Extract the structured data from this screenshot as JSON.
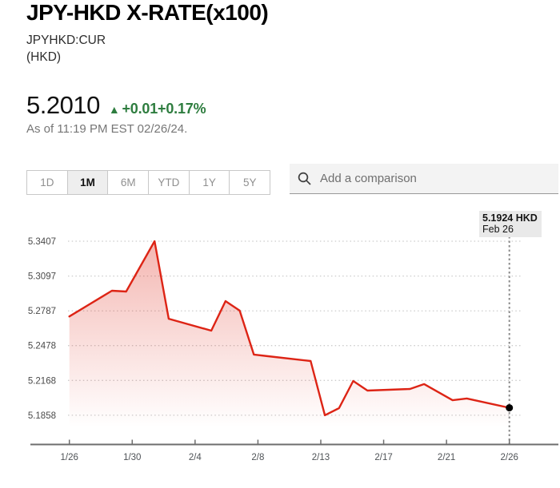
{
  "header": {
    "title": "JPY-HKD X-RATE(x100)",
    "symbol": "JPYHKD:CUR",
    "currency": "(HKD)"
  },
  "quote": {
    "price": "5.2010",
    "direction_icon": "▲",
    "change": "+0.01",
    "change_pct": "+0.17%",
    "as_of": "As of 11:19 PM EST 02/26/24."
  },
  "colors": {
    "up_green": "#2e7d3f",
    "line_red": "#dd2415",
    "grid_gray": "#cccccc",
    "axis_gray": "#6d6d6d",
    "marker_gray": "#8a8a8a"
  },
  "tabs": {
    "items": [
      {
        "label": "1D",
        "active": false
      },
      {
        "label": "1M",
        "active": true
      },
      {
        "label": "6M",
        "active": false
      },
      {
        "label": "YTD",
        "active": false
      },
      {
        "label": "1Y",
        "active": false
      },
      {
        "label": "5Y",
        "active": false
      }
    ]
  },
  "search": {
    "placeholder": "Add a comparison"
  },
  "chart_data": {
    "type": "area",
    "title": "JPY-HKD X-RATE(x100) 1M price chart",
    "series_name": "JPYHKD:CUR",
    "ylabel": "",
    "xlabel": "",
    "ylim": [
      5.1858,
      5.3407
    ],
    "grid": "dotted-horizontal",
    "y_ticks": [
      "5.3407",
      "5.3097",
      "5.2787",
      "5.2478",
      "5.2168",
      "5.1858"
    ],
    "x_ticks": [
      "1/26",
      "1/30",
      "2/4",
      "2/8",
      "2/13",
      "2/17",
      "2/21",
      "2/26"
    ],
    "points": [
      {
        "date": "1/26",
        "day": 0,
        "value": 5.2737
      },
      {
        "date": "1/29",
        "day": 3,
        "value": 5.2966
      },
      {
        "date": "1/30",
        "day": 4,
        "value": 5.2959
      },
      {
        "date": "2/1",
        "day": 6,
        "value": 5.3407
      },
      {
        "date": "2/2",
        "day": 7,
        "value": 5.2717
      },
      {
        "date": "2/5",
        "day": 10,
        "value": 5.2611
      },
      {
        "date": "2/6",
        "day": 11,
        "value": 5.2874
      },
      {
        "date": "2/7",
        "day": 12,
        "value": 5.2789
      },
      {
        "date": "2/8",
        "day": 13,
        "value": 5.2398
      },
      {
        "date": "2/9",
        "day": 14,
        "value": 5.2383
      },
      {
        "date": "2/12",
        "day": 17,
        "value": 5.2341
      },
      {
        "date": "2/13",
        "day": 18,
        "value": 5.1858
      },
      {
        "date": "2/14",
        "day": 19,
        "value": 5.1921
      },
      {
        "date": "2/15",
        "day": 20,
        "value": 5.2163
      },
      {
        "date": "2/16",
        "day": 21,
        "value": 5.2078
      },
      {
        "date": "2/19",
        "day": 24,
        "value": 5.2092
      },
      {
        "date": "2/20",
        "day": 25,
        "value": 5.2135
      },
      {
        "date": "2/22",
        "day": 27,
        "value": 5.1992
      },
      {
        "date": "2/23",
        "day": 28,
        "value": 5.2007
      },
      {
        "date": "2/26",
        "day": 31,
        "value": 5.1924
      }
    ],
    "last_point": {
      "label": "5.1924 HKD",
      "date": "Feb 26"
    },
    "layout": {
      "plot_x0": 86.7,
      "plot_x1": 636.7,
      "grid_x0": 85,
      "grid_x1": 653,
      "y_top": 302,
      "y_bottom": 519.9,
      "axis_y": 556.5,
      "axis_x0": 38,
      "axis_x1": 698,
      "tick_label_y": 576,
      "marker_top": 296,
      "area_fade_bottom": 535
    }
  }
}
